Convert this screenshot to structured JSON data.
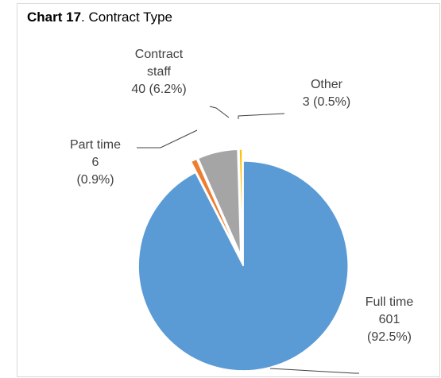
{
  "chart_data": {
    "type": "pie",
    "title_bold": "Chart 17",
    "title": ". Contract Type",
    "categories": [
      "Full time",
      "Part time",
      "Contract staff",
      "Other"
    ],
    "values": [
      601,
      6,
      40,
      3
    ],
    "value_labels": [
      "601 (92.5%)",
      "6 (0.9%)",
      "40 (6.2%)",
      "3 (0.5%)"
    ],
    "colors": [
      "#5b9bd5",
      "#ed7d31",
      "#a5a5a5",
      "#ffc000"
    ]
  }
}
